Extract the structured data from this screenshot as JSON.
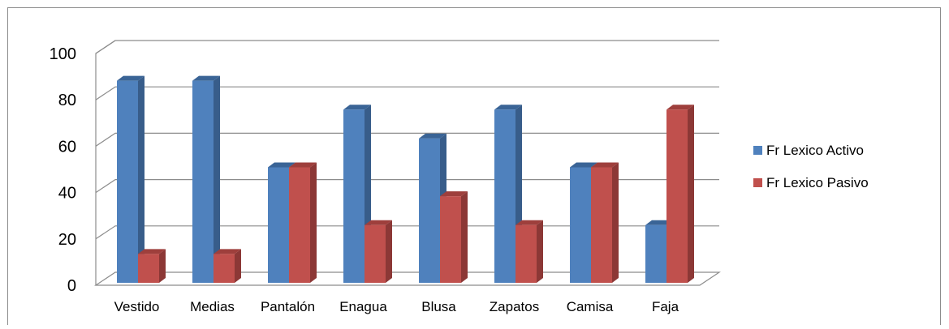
{
  "chart_data": {
    "type": "bar",
    "categories": [
      "Vestido",
      "Medias",
      "Pantalón",
      "Enagua",
      "Blusa",
      "Zapatos",
      "Camisa",
      "Faja"
    ],
    "series": [
      {
        "name": "Fr Lexico Activo",
        "values": [
          87.5,
          87.5,
          50,
          75,
          62.5,
          75,
          50,
          25
        ],
        "color": "#4F81BD",
        "side_color": "#385D8A",
        "top_color": "#3A6496"
      },
      {
        "name": "Fr Lexico Pasivo",
        "values": [
          12.5,
          12.5,
          50,
          25,
          37.5,
          25,
          50,
          75
        ],
        "color": "#C0504D",
        "side_color": "#8C3836",
        "top_color": "#9E3F3C"
      }
    ],
    "yticks": [
      "0",
      "20",
      "40",
      "60",
      "80",
      "100"
    ],
    "ylim": [
      0,
      100
    ],
    "grid": true,
    "legend_position": "right",
    "style": "3d-clustered-column"
  }
}
